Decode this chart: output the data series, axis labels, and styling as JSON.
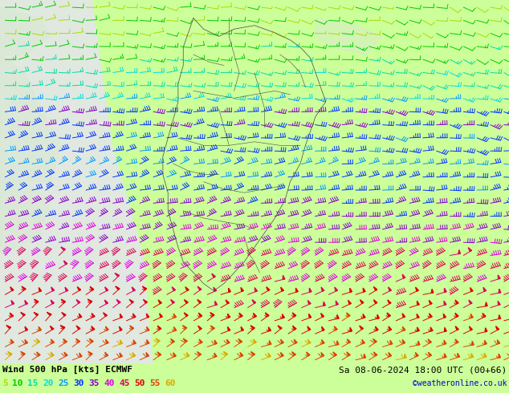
{
  "title_left": "Wind 500 hPa [kts] ECMWF",
  "title_right": "Sa 08-06-2024 18:00 UTC (00+66)",
  "credit": "©weatheronline.co.uk",
  "legend_values": [
    5,
    10,
    15,
    20,
    25,
    30,
    35,
    40,
    45,
    50,
    55,
    60
  ],
  "legend_colors": [
    "#aadd00",
    "#00cc00",
    "#00ddaa",
    "#00dddd",
    "#0099ff",
    "#0033ff",
    "#8800cc",
    "#dd00dd",
    "#dd0055",
    "#dd0000",
    "#dd4400",
    "#ddaa00"
  ],
  "bg_color": "#ccff99",
  "bg_land_color": "#e8e8e8",
  "border_color": "#333333",
  "bottom_bar_color": "#ccff99",
  "bottom_text_color": "#000000",
  "grid_rows": 28,
  "grid_cols": 38,
  "figwidth": 6.34,
  "figheight": 4.9,
  "dpi": 100
}
